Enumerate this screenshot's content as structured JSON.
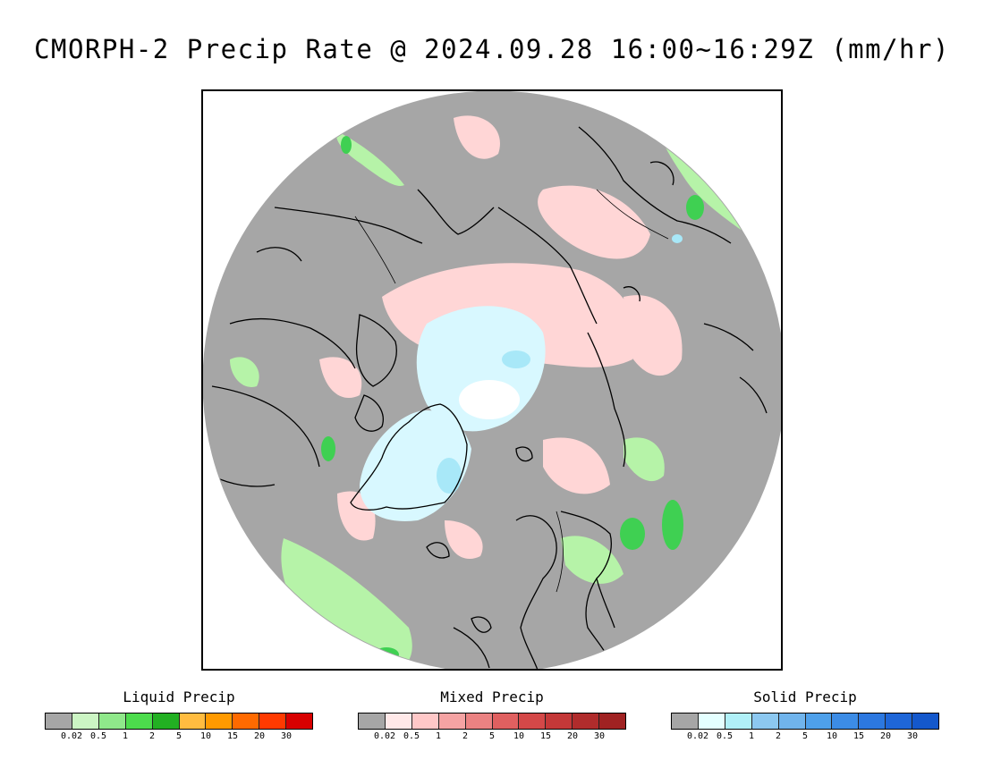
{
  "title": "CMORPH-2 Precip Rate @ 2024.09.28 16:00~16:29Z (mm/hr)",
  "map": {
    "projection": "north polar stereographic",
    "colors": {
      "no_precip": "#a6a6a6",
      "liquid_light": "#b6f3a8",
      "liquid_mid": "#7fe57f",
      "liquid_heavy": "#2fc24a",
      "mixed_light": "#ffd6d6",
      "mixed_mid": "#f5a8a8",
      "solid_light": "#d8f8ff",
      "solid_mid": "#a8e8f8",
      "pole_white": "#ffffff",
      "coastline": "#000000"
    }
  },
  "legends": [
    {
      "title": "Liquid Precip",
      "colors": [
        "#a6a6a6",
        "#ccf5c4",
        "#8fe88a",
        "#4cdc4c",
        "#22b022",
        "#ffbc40",
        "#ff9a00",
        "#ff6a00",
        "#ff3a00",
        "#d80000"
      ],
      "ticks": [
        "0.02",
        "0.5",
        "1",
        "2",
        "5",
        "10",
        "15",
        "20",
        "30"
      ]
    },
    {
      "title": "Mixed Precip",
      "colors": [
        "#a6a6a6",
        "#ffe8e8",
        "#ffc8c8",
        "#f5a3a3",
        "#eb8282",
        "#e06060",
        "#d44848",
        "#c43838",
        "#b02c2c",
        "#a02222"
      ],
      "ticks": [
        "0.02",
        "0.5",
        "1",
        "2",
        "5",
        "10",
        "15",
        "20",
        "30"
      ]
    },
    {
      "title": "Solid Precip",
      "colors": [
        "#a6a6a6",
        "#e4ffff",
        "#b0f0f8",
        "#8cc8f0",
        "#70b4ec",
        "#4ea0ea",
        "#3c8ce6",
        "#2c78e0",
        "#1e66d8",
        "#1458cc"
      ],
      "ticks": [
        "0.02",
        "0.5",
        "1",
        "2",
        "5",
        "10",
        "15",
        "20",
        "30"
      ]
    }
  ]
}
